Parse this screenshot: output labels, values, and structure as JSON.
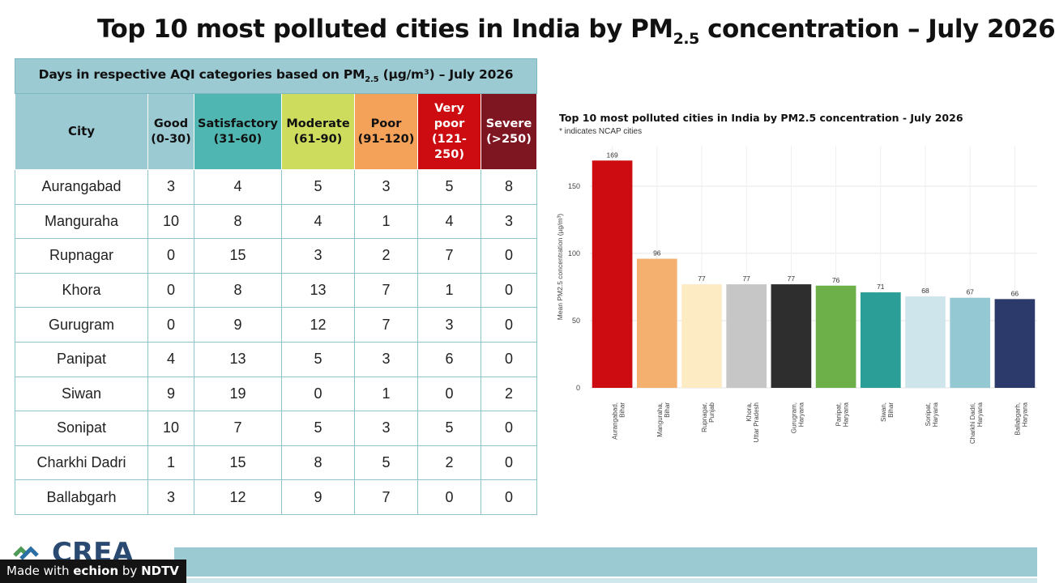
{
  "header": {
    "title_main": "Top 10 most polluted cities in India by PM",
    "title_sub": "2.5",
    "title_tail": " concentration – July 2026"
  },
  "table": {
    "caption_main": "Days in respective AQI categories based on PM",
    "caption_sub": "2.5",
    "caption_tail": " (µg/m³) – July 2026",
    "headers": [
      {
        "label": "City",
        "range": ""
      },
      {
        "label": "Good",
        "range": "(0-30)"
      },
      {
        "label": "Satisfactory",
        "range": "(31-60)"
      },
      {
        "label": "Moderate",
        "range": "(61-90)"
      },
      {
        "label": "Poor",
        "range": "(91-120)"
      },
      {
        "label": "Very poor",
        "range": "(121-250)"
      },
      {
        "label": "Severe",
        "range": "(>250)"
      }
    ],
    "header_colors": [
      "#9ccad3",
      "#9ccad3",
      "#4fb6b2",
      "#cddc5c",
      "#f4a25a",
      "#cc0c10",
      "#7e1622"
    ],
    "rows": [
      [
        "Aurangabad",
        "3",
        "4",
        "5",
        "3",
        "5",
        "8"
      ],
      [
        "Manguraha",
        "10",
        "8",
        "4",
        "1",
        "4",
        "3"
      ],
      [
        "Rupnagar",
        "0",
        "15",
        "3",
        "2",
        "7",
        "0"
      ],
      [
        "Khora",
        "0",
        "8",
        "13",
        "7",
        "1",
        "0"
      ],
      [
        "Gurugram",
        "0",
        "9",
        "12",
        "7",
        "3",
        "0"
      ],
      [
        "Panipat",
        "4",
        "13",
        "5",
        "3",
        "6",
        "0"
      ],
      [
        "Siwan",
        "9",
        "19",
        "0",
        "1",
        "0",
        "2"
      ],
      [
        "Sonipat",
        "10",
        "7",
        "5",
        "3",
        "5",
        "0"
      ],
      [
        "Charkhi Dadri",
        "1",
        "15",
        "8",
        "5",
        "2",
        "0"
      ],
      [
        "Ballabgarh",
        "3",
        "12",
        "9",
        "7",
        "0",
        "0"
      ]
    ]
  },
  "chart_data": {
    "type": "bar",
    "title": "Top 10 most polluted cities in India by PM2.5 concentration - July 2026",
    "subtitle": "* indicates NCAP cities",
    "xlabel": "",
    "ylabel": "Mean PM2.5 concentration (µg/m³)",
    "ylim": [
      0,
      180
    ],
    "yticks": [
      0,
      50,
      100,
      150
    ],
    "grid": true,
    "categories": [
      [
        "Aurangabad,",
        "Bihar"
      ],
      [
        "Manguraha,",
        "Bihar"
      ],
      [
        "Rupnagar,",
        "Punjab"
      ],
      [
        "Khora,",
        "Uttar Pradesh"
      ],
      [
        "Gurugram,",
        "Haryana"
      ],
      [
        "Panipat,",
        "Haryana"
      ],
      [
        "Siwan,",
        "Bihar"
      ],
      [
        "Sonipat,",
        "Haryana"
      ],
      [
        "Charkhi Dadri,",
        "Haryana"
      ],
      [
        "Ballabgarh,",
        "Haryana"
      ]
    ],
    "values": [
      169,
      96,
      77,
      77,
      77,
      76,
      71,
      68,
      67,
      66
    ],
    "colors": [
      "#cc0c10",
      "#f4b06e",
      "#fdebc4",
      "#c6c6c6",
      "#2e2e2e",
      "#6db04a",
      "#2a9e97",
      "#cfe5ec",
      "#94c9d4",
      "#2c3a6b"
    ]
  },
  "footer": {
    "logo_text": "CREA",
    "watermark_prefix": "Made with ",
    "watermark_brand": "echion",
    "watermark_by": " by ",
    "watermark_org": "NDTV"
  }
}
